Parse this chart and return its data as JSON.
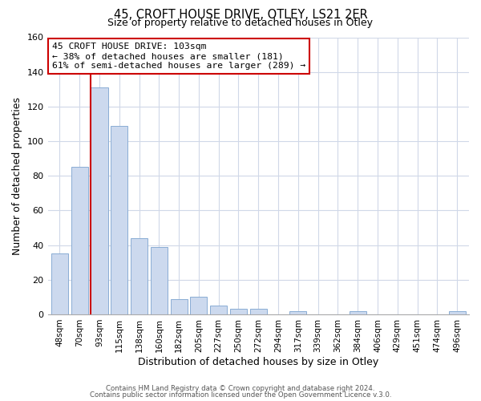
{
  "title": "45, CROFT HOUSE DRIVE, OTLEY, LS21 2ER",
  "subtitle": "Size of property relative to detached houses in Otley",
  "xlabel": "Distribution of detached houses by size in Otley",
  "ylabel": "Number of detached properties",
  "bar_labels": [
    "48sqm",
    "70sqm",
    "93sqm",
    "115sqm",
    "138sqm",
    "160sqm",
    "182sqm",
    "205sqm",
    "227sqm",
    "250sqm",
    "272sqm",
    "294sqm",
    "317sqm",
    "339sqm",
    "362sqm",
    "384sqm",
    "406sqm",
    "429sqm",
    "451sqm",
    "474sqm",
    "496sqm"
  ],
  "bar_values": [
    35,
    85,
    131,
    109,
    44,
    39,
    9,
    10,
    5,
    3,
    3,
    0,
    2,
    0,
    0,
    2,
    0,
    0,
    0,
    0,
    2
  ],
  "bar_color": "#ccd9ee",
  "bar_edge_color": "#8aadd4",
  "highlight_bar_index": 2,
  "highlight_color": "#cc0000",
  "ylim": [
    0,
    160
  ],
  "yticks": [
    0,
    20,
    40,
    60,
    80,
    100,
    120,
    140,
    160
  ],
  "annotation_title": "45 CROFT HOUSE DRIVE: 103sqm",
  "annotation_line1": "← 38% of detached houses are smaller (181)",
  "annotation_line2": "61% of semi-detached houses are larger (289) →",
  "footnote1": "Contains HM Land Registry data © Crown copyright and database right 2024.",
  "footnote2": "Contains public sector information licensed under the Open Government Licence v.3.0.",
  "grid_color": "#d0d8e8",
  "background_color": "#ffffff"
}
